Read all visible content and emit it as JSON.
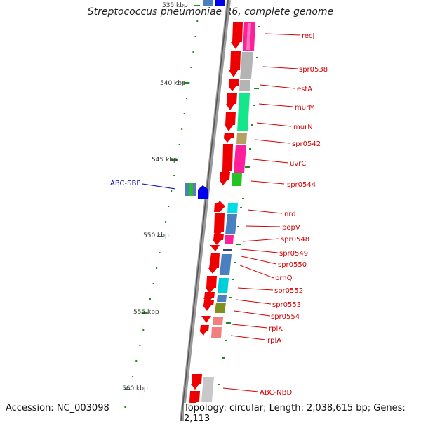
{
  "title": "Streptococcus pneumoniae R6, complete genome",
  "scale_labels": [
    {
      "key": "535",
      "text": "535 kbp"
    },
    {
      "key": "540",
      "text": "540 kbp"
    },
    {
      "key": "545",
      "text": "545 kbp"
    },
    {
      "key": "550",
      "text": "550 kbp"
    },
    {
      "key": "555",
      "text": "555 kbp"
    },
    {
      "key": "560",
      "text": "560 kbp"
    }
  ],
  "genes": [
    "recJ",
    "spr0538",
    "estA",
    "murM",
    "murN",
    "spr0542",
    "uvrC",
    "spr0544",
    "nrd",
    "pepV",
    "spr0548",
    "spr0549",
    "spr0550",
    "brnQ",
    "spr0552",
    "spr0553",
    "spr0554",
    "rplK",
    "rplA",
    "ABC-NBD"
  ],
  "left_annotation": "ABC-SBP",
  "footer": {
    "accession": "Accession: NC_003098",
    "topology": "Topology: circular; Length: 2,038,615 bp; Genes: 2,113"
  },
  "colors": {
    "gene_label": "#d40000",
    "left_label": "#0000aa",
    "tick": "#1f8a1f"
  }
}
